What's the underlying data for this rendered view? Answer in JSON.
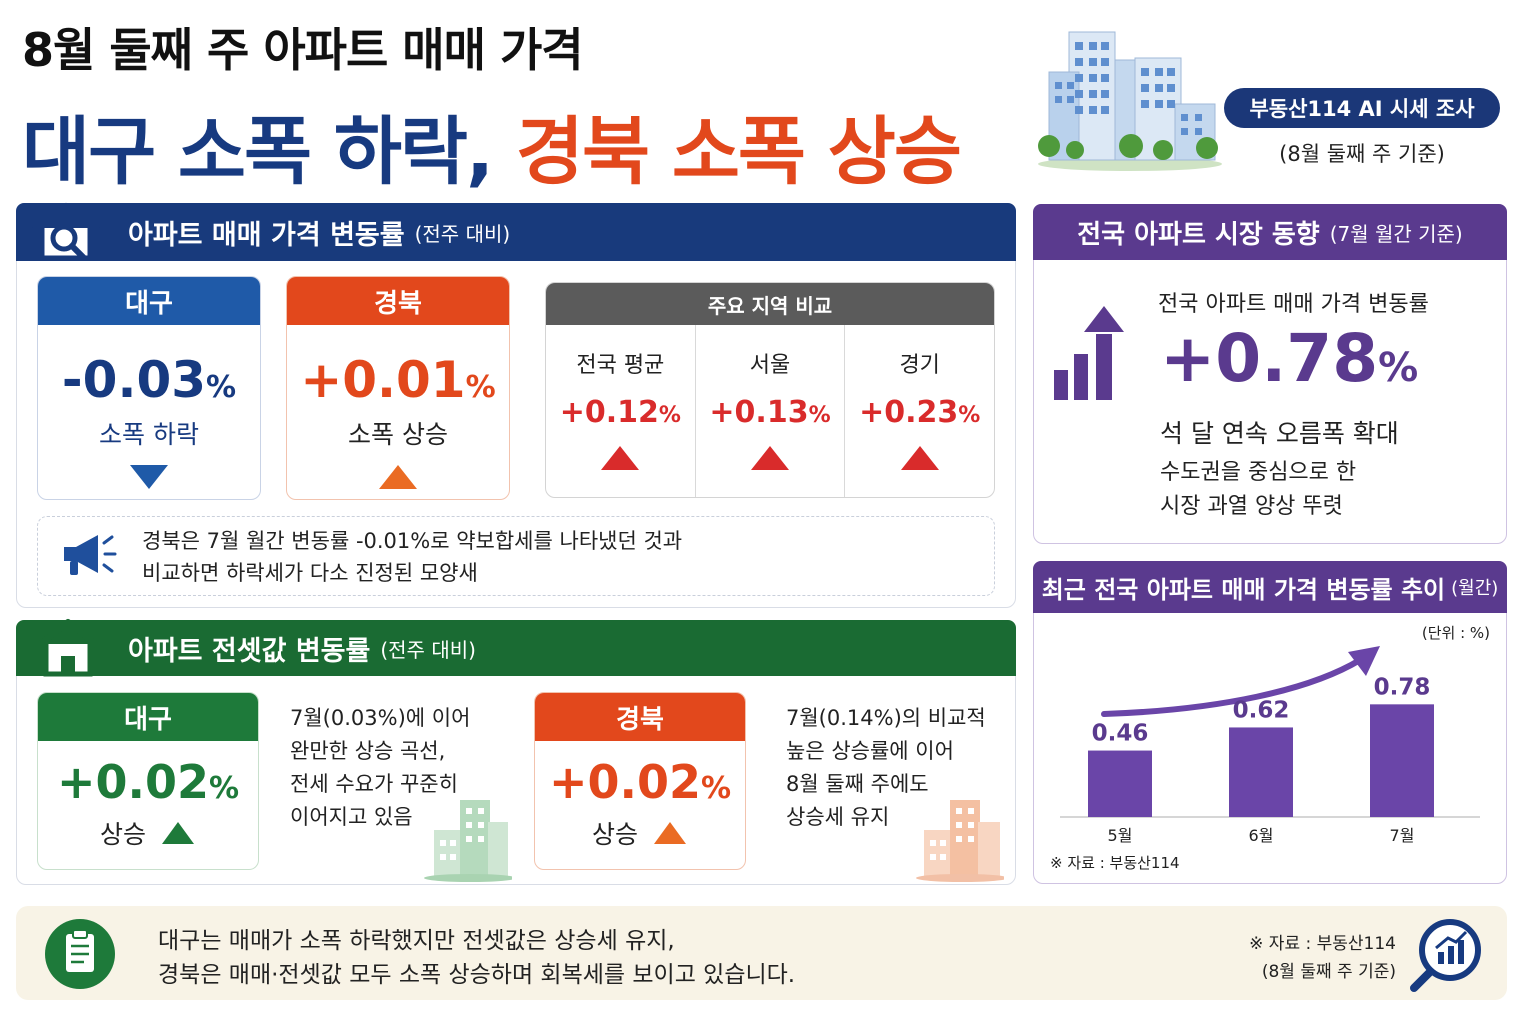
{
  "header": {
    "title_line1": "8월 둘째 주 아파트 매매 가격",
    "title_line2_part1": "대구 소폭 하락,",
    "title_line2_part2": "경북 소폭 상승",
    "source_pill": "부동산114 AI 시세 조사",
    "source_basis": "(8월 둘째 주 기준)"
  },
  "sale_section": {
    "title": "아파트 매매 가격 변동률",
    "subtitle": "(전주 대비)",
    "icon": "house-search-icon",
    "daegu": {
      "label": "대구",
      "value": "-0.03",
      "unit": "%",
      "status": "소폭 하락",
      "direction": "down"
    },
    "gyeongbuk": {
      "label": "경북",
      "value": "+0.01",
      "unit": "%",
      "status": "소폭 상승",
      "direction": "up"
    },
    "compare": {
      "title": "주요 지역 비교",
      "items": [
        {
          "label": "전국 평균",
          "value": "+0.12",
          "unit": "%"
        },
        {
          "label": "서울",
          "value": "+0.13",
          "unit": "%"
        },
        {
          "label": "경기",
          "value": "+0.23",
          "unit": "%"
        }
      ]
    },
    "note": {
      "icon": "megaphone-icon",
      "line1": "경북은 7월 월간 변동률 -0.01%로 약보합세를 나타냈던 것과",
      "line2": "비교하면 하락세가 다소 진정된 모양새"
    }
  },
  "jeonse_section": {
    "title": "아파트 전셋값 변동률",
    "subtitle": "(전주 대비)",
    "icon": "house-icon",
    "daegu": {
      "label": "대구",
      "value": "+0.02",
      "unit": "%",
      "status": "상승",
      "desc": [
        "7월(0.03%)에 이어",
        "완만한 상승 곡선,",
        "전세 수요가 꾸준히",
        "이어지고 있음"
      ]
    },
    "gyeongbuk": {
      "label": "경북",
      "value": "+0.02",
      "unit": "%",
      "status": "상승",
      "desc": [
        "7월(0.14%)의 비교적",
        "높은 상승률에 이어",
        "8월 둘째 주에도",
        "상승세 유지"
      ]
    }
  },
  "national_section": {
    "title": "전국 아파트 시장 동향",
    "subtitle": "(7월 월간 기준)",
    "icon": "rising-bars-arrow-icon",
    "heading": "전국 아파트 매매 가격 변동률",
    "value": "+0.78",
    "unit": "%",
    "line1": "석 달 연속 오름폭 확대",
    "line2": "수도권을 중심으로 한",
    "line3": "시장 과열 양상 뚜렷"
  },
  "trend_section": {
    "title": "최근 전국 아파트 매매 가격 변동률 추이",
    "subtitle": "(월간)",
    "unit_label": "(단위 : %)",
    "source": "※ 자료 : 부동산114"
  },
  "chart_data": {
    "type": "bar",
    "categories": [
      "5월",
      "6월",
      "7월"
    ],
    "values": [
      0.46,
      0.62,
      0.78
    ],
    "data_labels": [
      "0.46",
      "0.62",
      "0.78"
    ],
    "ylim": [
      0,
      0.9
    ],
    "grid": false,
    "color": "#6a45a8"
  },
  "footer": {
    "icon": "clipboard-icon",
    "line1": "대구는 매매가 소폭 하락했지만 전셋값은 상승세 유지,",
    "line2": "경북은 매매·전셋값 모두 소폭 상승하며 회복세를 보이고 있습니다.",
    "source": "※ 자료 : 부동산114",
    "basis": "(8월 둘째 주 기준)",
    "right_icon": "magnifier-chart-icon"
  },
  "colors": {
    "navy": "#173a80",
    "orange": "#e2481c",
    "green": "#1a6b33",
    "purple": "#5a3a8e",
    "red_up": "#d92b2b"
  }
}
